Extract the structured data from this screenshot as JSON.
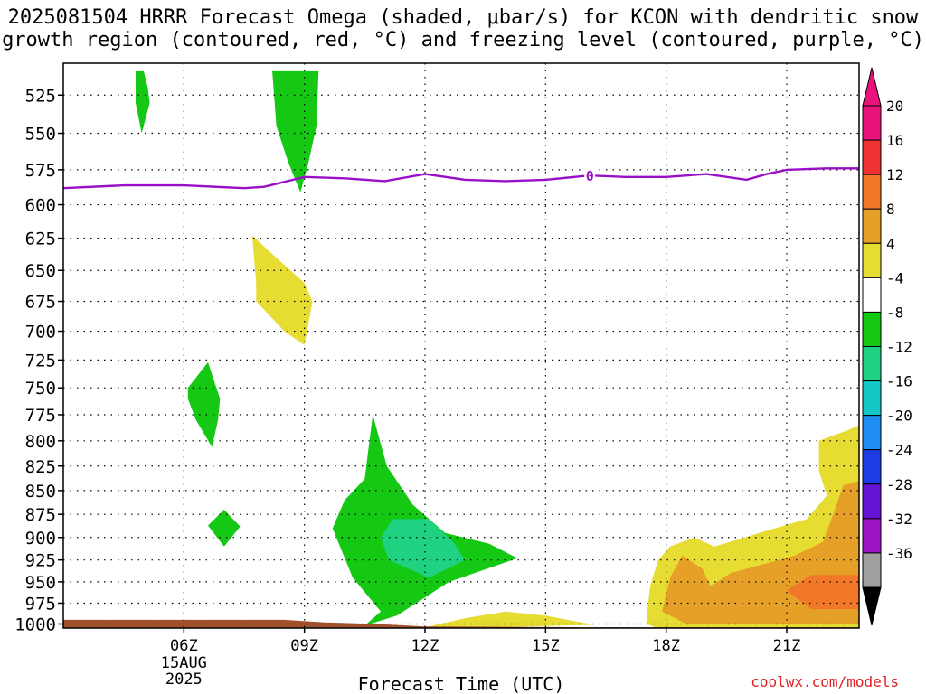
{
  "title_line1": "2025081504 HRRR Forecast Omega (shaded, μbar/s) for KCON with dendritic snow",
  "title_line2": "growth region (contoured, red, °C) and freezing level (contoured, purple, °C)",
  "credit": "coolwx.com/models",
  "chart_data": {
    "type": "heatmap",
    "title": "2025081504 HRRR Forecast Omega (shaded, μbar/s) for KCON with dendritic snow growth region (contoured, red, °C) and freezing level (contoured, purple, °C)",
    "xlabel": "Forecast Time (UTC)",
    "ylabel": "",
    "xlim": [
      3.0,
      22.8
    ],
    "ylim": [
      1005,
      505
    ],
    "y_scale": "log-pressure",
    "grid": true,
    "x_ticks": [
      {
        "value": 6,
        "label": "06Z"
      },
      {
        "value": 9,
        "label": "09Z"
      },
      {
        "value": 12,
        "label": "12Z"
      },
      {
        "value": 15,
        "label": "15Z"
      },
      {
        "value": 18,
        "label": "18Z"
      },
      {
        "value": 21,
        "label": "21Z"
      }
    ],
    "date_label": [
      "15AUG",
      "2025"
    ],
    "y_ticks": [
      525,
      550,
      575,
      600,
      625,
      650,
      675,
      700,
      725,
      750,
      775,
      800,
      825,
      850,
      875,
      900,
      925,
      950,
      975,
      1000
    ],
    "colorbar": {
      "units": "μbar/s",
      "levels": [
        {
          "label": "20",
          "color": "#e8147a"
        },
        {
          "label": "16",
          "color": "#f03232"
        },
        {
          "label": "12",
          "color": "#f07828"
        },
        {
          "label": "8",
          "color": "#e6a028"
        },
        {
          "label": "4",
          "color": "#e6dc32"
        },
        {
          "label": "-4",
          "color": "#ffffff"
        },
        {
          "label": "-8",
          "color": "#14c814"
        },
        {
          "label": "-12",
          "color": "#1ed282"
        },
        {
          "label": "-16",
          "color": "#14c8c8"
        },
        {
          "label": "-20",
          "color": "#1e8cf0"
        },
        {
          "label": "-24",
          "color": "#1e3ce6"
        },
        {
          "label": "-28",
          "color": "#6414d2"
        },
        {
          "label": "-32",
          "color": "#a014c8"
        },
        {
          "label": "-36",
          "color": "#a0a0a0"
        }
      ],
      "under_color": "#000000",
      "over_color": "#e8147a"
    },
    "freezing_level": {
      "color": "#9a10c8",
      "label": "0",
      "label_time": 16.1,
      "points": [
        [
          3.0,
          588
        ],
        [
          4.5,
          586
        ],
        [
          6.0,
          586
        ],
        [
          7.5,
          588
        ],
        [
          8.0,
          587
        ],
        [
          9.0,
          580
        ],
        [
          10.0,
          581
        ],
        [
          11.0,
          583
        ],
        [
          12.0,
          578
        ],
        [
          13.0,
          582
        ],
        [
          14.0,
          583
        ],
        [
          15.0,
          582
        ],
        [
          16.1,
          579
        ],
        [
          17.0,
          580
        ],
        [
          18.0,
          580
        ],
        [
          19.0,
          578
        ],
        [
          20.0,
          582
        ],
        [
          20.5,
          578
        ],
        [
          21.0,
          575
        ],
        [
          22.0,
          574
        ],
        [
          22.8,
          574
        ]
      ]
    },
    "regions": [
      {
        "name": "omega -8 to -4",
        "color": "#14c814",
        "points": [
          [
            4.8,
            510
          ],
          [
            5.0,
            510
          ],
          [
            5.1,
            520
          ],
          [
            5.15,
            530
          ],
          [
            4.95,
            550
          ],
          [
            4.8,
            530
          ]
        ]
      },
      {
        "name": "omega -8 to -4",
        "color": "#14c814",
        "points": [
          [
            8.2,
            510
          ],
          [
            9.35,
            510
          ],
          [
            9.3,
            545
          ],
          [
            9.1,
            570
          ],
          [
            8.9,
            591
          ],
          [
            8.6,
            570
          ],
          [
            8.3,
            545
          ]
        ]
      },
      {
        "name": "omega 4 to 8",
        "color": "#e6dc32",
        "points": [
          [
            7.7,
            623
          ],
          [
            8.3,
            640
          ],
          [
            9.0,
            660
          ],
          [
            9.2,
            675
          ],
          [
            9.0,
            712
          ],
          [
            8.5,
            700
          ],
          [
            7.8,
            675
          ],
          [
            7.8,
            660
          ]
        ]
      },
      {
        "name": "omega -8 to -4",
        "color": "#14c814",
        "points": [
          [
            6.1,
            750
          ],
          [
            6.6,
            727
          ],
          [
            6.9,
            760
          ],
          [
            6.85,
            780
          ],
          [
            6.7,
            806
          ],
          [
            6.3,
            780
          ],
          [
            6.1,
            760
          ]
        ]
      },
      {
        "name": "omega -8 to -4",
        "color": "#14c814",
        "points": [
          [
            6.6,
            887
          ],
          [
            7.0,
            870
          ],
          [
            7.4,
            888
          ],
          [
            7.0,
            910
          ]
        ]
      },
      {
        "name": "omega -8 to -4",
        "color": "#14c814",
        "points": [
          [
            10.7,
            775
          ],
          [
            11.05,
            825
          ],
          [
            11.7,
            865
          ],
          [
            12.5,
            895
          ],
          [
            13.6,
            907
          ],
          [
            14.3,
            923
          ],
          [
            12.6,
            950
          ],
          [
            11.3,
            990
          ],
          [
            10.5,
            1002
          ],
          [
            10.9,
            985
          ],
          [
            10.2,
            945
          ],
          [
            9.7,
            890
          ],
          [
            10.0,
            860
          ],
          [
            10.5,
            838
          ]
        ]
      },
      {
        "name": "omega -12 to -8",
        "color": "#1ed282",
        "points": [
          [
            11.2,
            880
          ],
          [
            12.1,
            880
          ],
          [
            12.7,
            905
          ],
          [
            13.0,
            925
          ],
          [
            12.1,
            945
          ],
          [
            11.1,
            925
          ],
          [
            10.9,
            900
          ]
        ]
      },
      {
        "name": "omega 4 to 8",
        "color": "#e6dc32",
        "points": [
          [
            12.0,
            1004
          ],
          [
            13.0,
            993
          ],
          [
            14.0,
            985
          ],
          [
            15.0,
            990
          ],
          [
            16.2,
            1001
          ],
          [
            13.0,
            1005
          ]
        ]
      },
      {
        "name": "omega 4 to 8",
        "color": "#e6dc32",
        "points": [
          [
            17.5,
            1000
          ],
          [
            17.6,
            955
          ],
          [
            17.8,
            925
          ],
          [
            18.1,
            910
          ],
          [
            18.7,
            900
          ],
          [
            19.2,
            910
          ],
          [
            19.8,
            902
          ],
          [
            20.7,
            890
          ],
          [
            21.5,
            880
          ],
          [
            22.0,
            855
          ],
          [
            21.8,
            830
          ],
          [
            21.8,
            800
          ],
          [
            22.5,
            790
          ],
          [
            22.8,
            785
          ],
          [
            22.8,
            1005
          ],
          [
            17.8,
            1005
          ]
        ]
      },
      {
        "name": "omega 8 to 12",
        "color": "#e6a028",
        "points": [
          [
            17.9,
            985
          ],
          [
            18.1,
            945
          ],
          [
            18.4,
            920
          ],
          [
            18.9,
            935
          ],
          [
            19.1,
            955
          ],
          [
            19.6,
            940
          ],
          [
            20.4,
            930
          ],
          [
            21.2,
            920
          ],
          [
            21.9,
            905
          ],
          [
            22.2,
            870
          ],
          [
            22.4,
            845
          ],
          [
            22.8,
            840
          ],
          [
            22.8,
            1000
          ],
          [
            18.5,
            1000
          ]
        ]
      },
      {
        "name": "omega 12 to 16",
        "color": "#f07828",
        "points": [
          [
            21.0,
            960
          ],
          [
            21.6,
            942
          ],
          [
            22.8,
            942
          ],
          [
            22.8,
            982
          ],
          [
            21.6,
            982
          ]
        ]
      },
      {
        "name": "terrain",
        "color": "#a0522d",
        "points": [
          [
            3.0,
            995
          ],
          [
            8.5,
            995
          ],
          [
            9.5,
            998
          ],
          [
            10.8,
            1000
          ],
          [
            12.0,
            1003
          ],
          [
            16.0,
            1004
          ],
          [
            22.8,
            1004
          ],
          [
            22.8,
            1012
          ],
          [
            3.0,
            1012
          ]
        ]
      }
    ]
  }
}
